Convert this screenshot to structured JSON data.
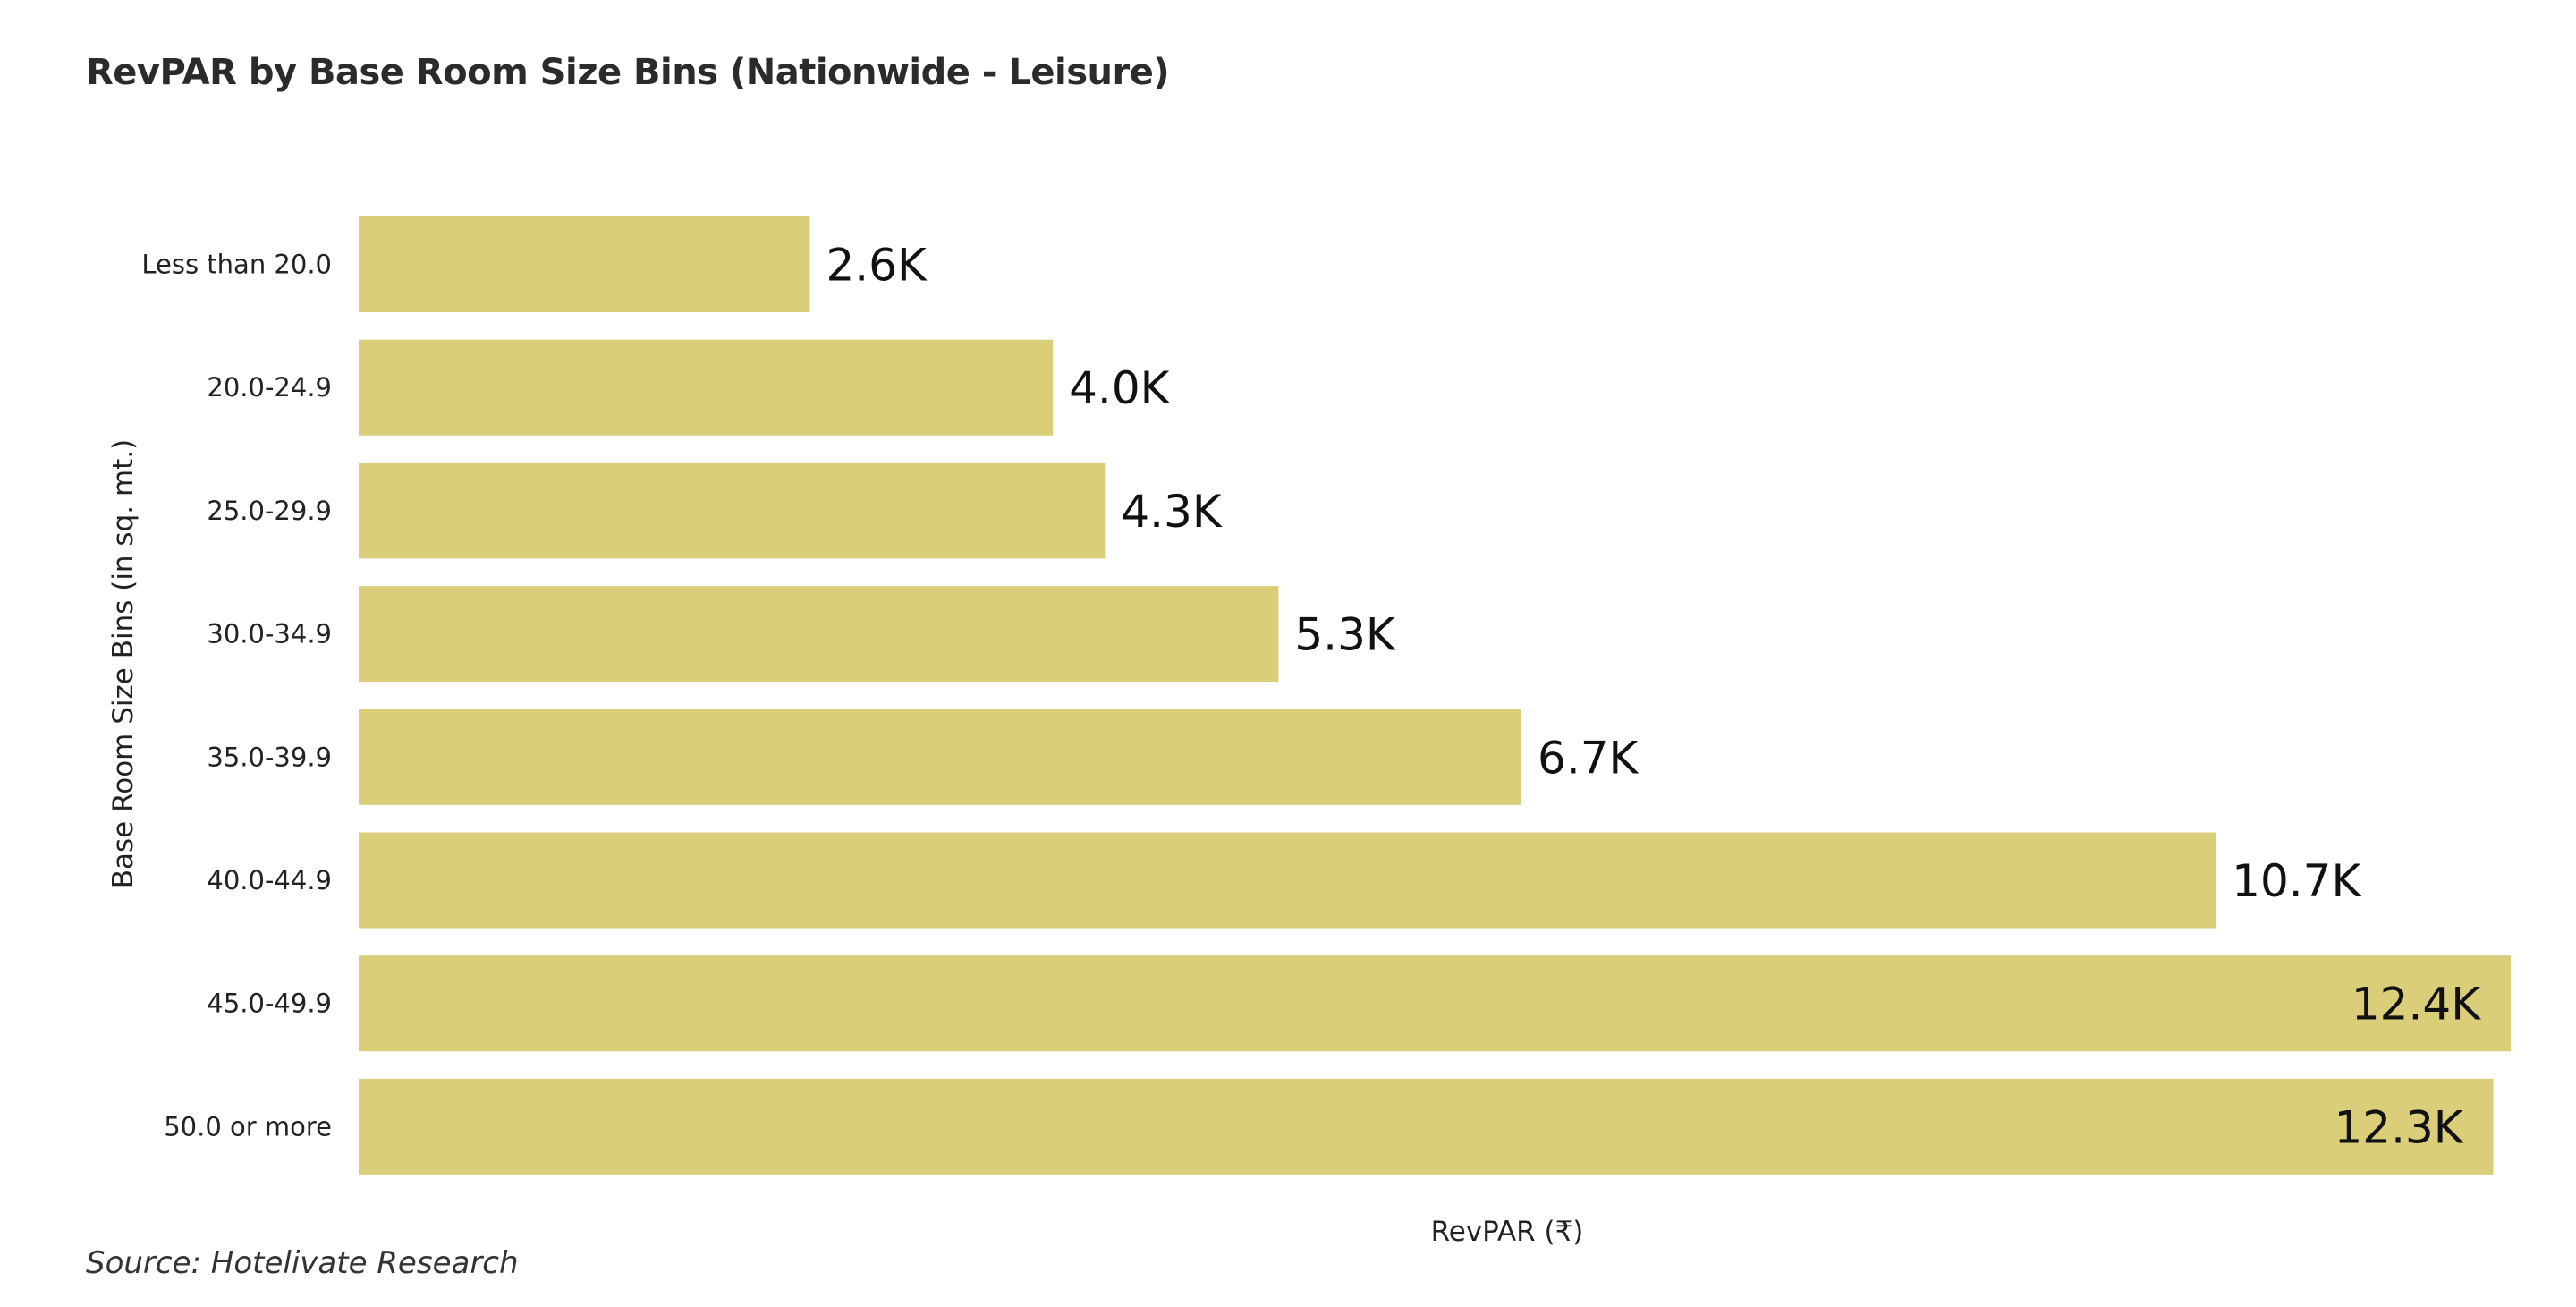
{
  "chart_data": {
    "type": "bar",
    "orientation": "horizontal",
    "title": "RevPAR by Base Room Size Bins (Nationwide - Leisure)",
    "xlabel": "RevPAR (₹)",
    "ylabel": "Base Room Size Bins (in sq. mt.)",
    "categories": [
      "Less than 20.0",
      "20.0-24.9",
      "25.0-29.9",
      "30.0-34.9",
      "35.0-39.9",
      "40.0-44.9",
      "45.0-49.9",
      "50.0 or more"
    ],
    "values": [
      2600,
      4000,
      4300,
      5300,
      6700,
      10700,
      12400,
      12300
    ],
    "value_labels": [
      "2.6K",
      "4.0K",
      "4.3K",
      "5.3K",
      "6.7K",
      "10.7K",
      "12.4K",
      "12.3K"
    ],
    "xlim": [
      0,
      12400
    ],
    "grid": false,
    "legend": "none",
    "bar_color": "#dbce7b"
  },
  "source": "Source: Hotelivate Research"
}
